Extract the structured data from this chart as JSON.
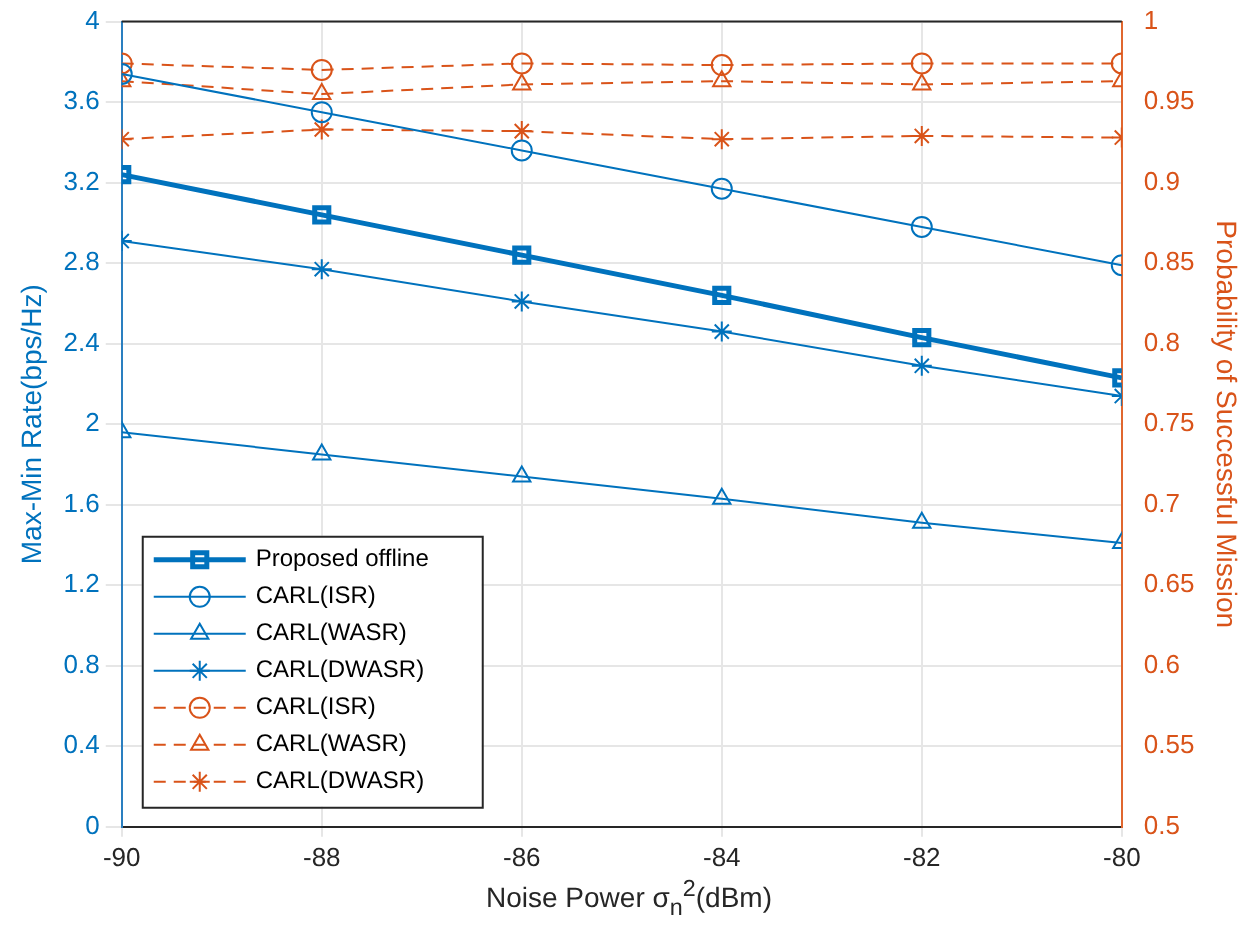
{
  "chart_data": {
    "type": "line",
    "xlabel": "Noise Power σ$_{n}$$^{2}$(dBm)",
    "ylabel": "Max-Min Rate(bps/Hz)",
    "y2label": "Probability of Successful Mission",
    "x": [
      -90,
      -88,
      -86,
      -84,
      -82,
      -80
    ],
    "series": [
      {
        "name": "Proposed offline",
        "color": "#0072bd",
        "marker": "square",
        "line_style": "solid",
        "values": [
          3.24,
          3.04,
          2.84,
          2.64,
          2.43,
          2.23
        ]
      },
      {
        "name": "CARL(ISR)",
        "color": "#0072bd",
        "marker": "circle",
        "line_style": "solid",
        "values": [
          3.74,
          3.55,
          3.36,
          3.17,
          2.98,
          2.79
        ]
      },
      {
        "name": "CARL(WASR)",
        "color": "#0072bd",
        "marker": "triangle",
        "line_style": "solid",
        "values": [
          1.96,
          1.85,
          1.74,
          1.63,
          1.51,
          1.41
        ]
      },
      {
        "name": "CARL(DWASR)",
        "color": "#0072bd",
        "marker": "cross",
        "line_style": "solid",
        "values": [
          2.91,
          2.77,
          2.61,
          2.46,
          2.29,
          2.14
        ]
      },
      {
        "name": "CARL(ISR)",
        "color": "#d95319",
        "marker": "circle",
        "line_style": "dashed",
        "axis": "y2",
        "values": [
          0.974,
          0.97,
          0.974,
          0.973,
          0.974,
          0.974
        ]
      },
      {
        "name": "CARL(WASR)",
        "color": "#d95319",
        "marker": "triangle",
        "line_style": "dashed",
        "axis": "y2",
        "values": [
          0.963,
          0.955,
          0.961,
          0.963,
          0.961,
          0.963
        ]
      },
      {
        "name": "CARL(DWASR)",
        "color": "#d95319",
        "marker": "cross",
        "line_style": "dashed",
        "axis": "y2",
        "values": [
          0.927,
          0.933,
          0.932,
          0.927,
          0.929,
          0.928
        ]
      }
    ],
    "xlim": [
      -90,
      -80
    ],
    "xticks": [
      -90,
      -88,
      -86,
      -84,
      -82,
      -80
    ],
    "ylim": [
      0,
      4
    ],
    "yticks": [
      0,
      0.4,
      0.8,
      1.2,
      1.6,
      2,
      2.4,
      2.8,
      3.2,
      3.6,
      4
    ],
    "y2lim": [
      0.5,
      1
    ],
    "y2ticks": [
      0.5,
      0.55,
      0.6,
      0.65,
      0.7,
      0.75,
      0.8,
      0.85,
      0.9,
      0.95,
      1
    ],
    "grid": true,
    "legend": "bottom left"
  }
}
